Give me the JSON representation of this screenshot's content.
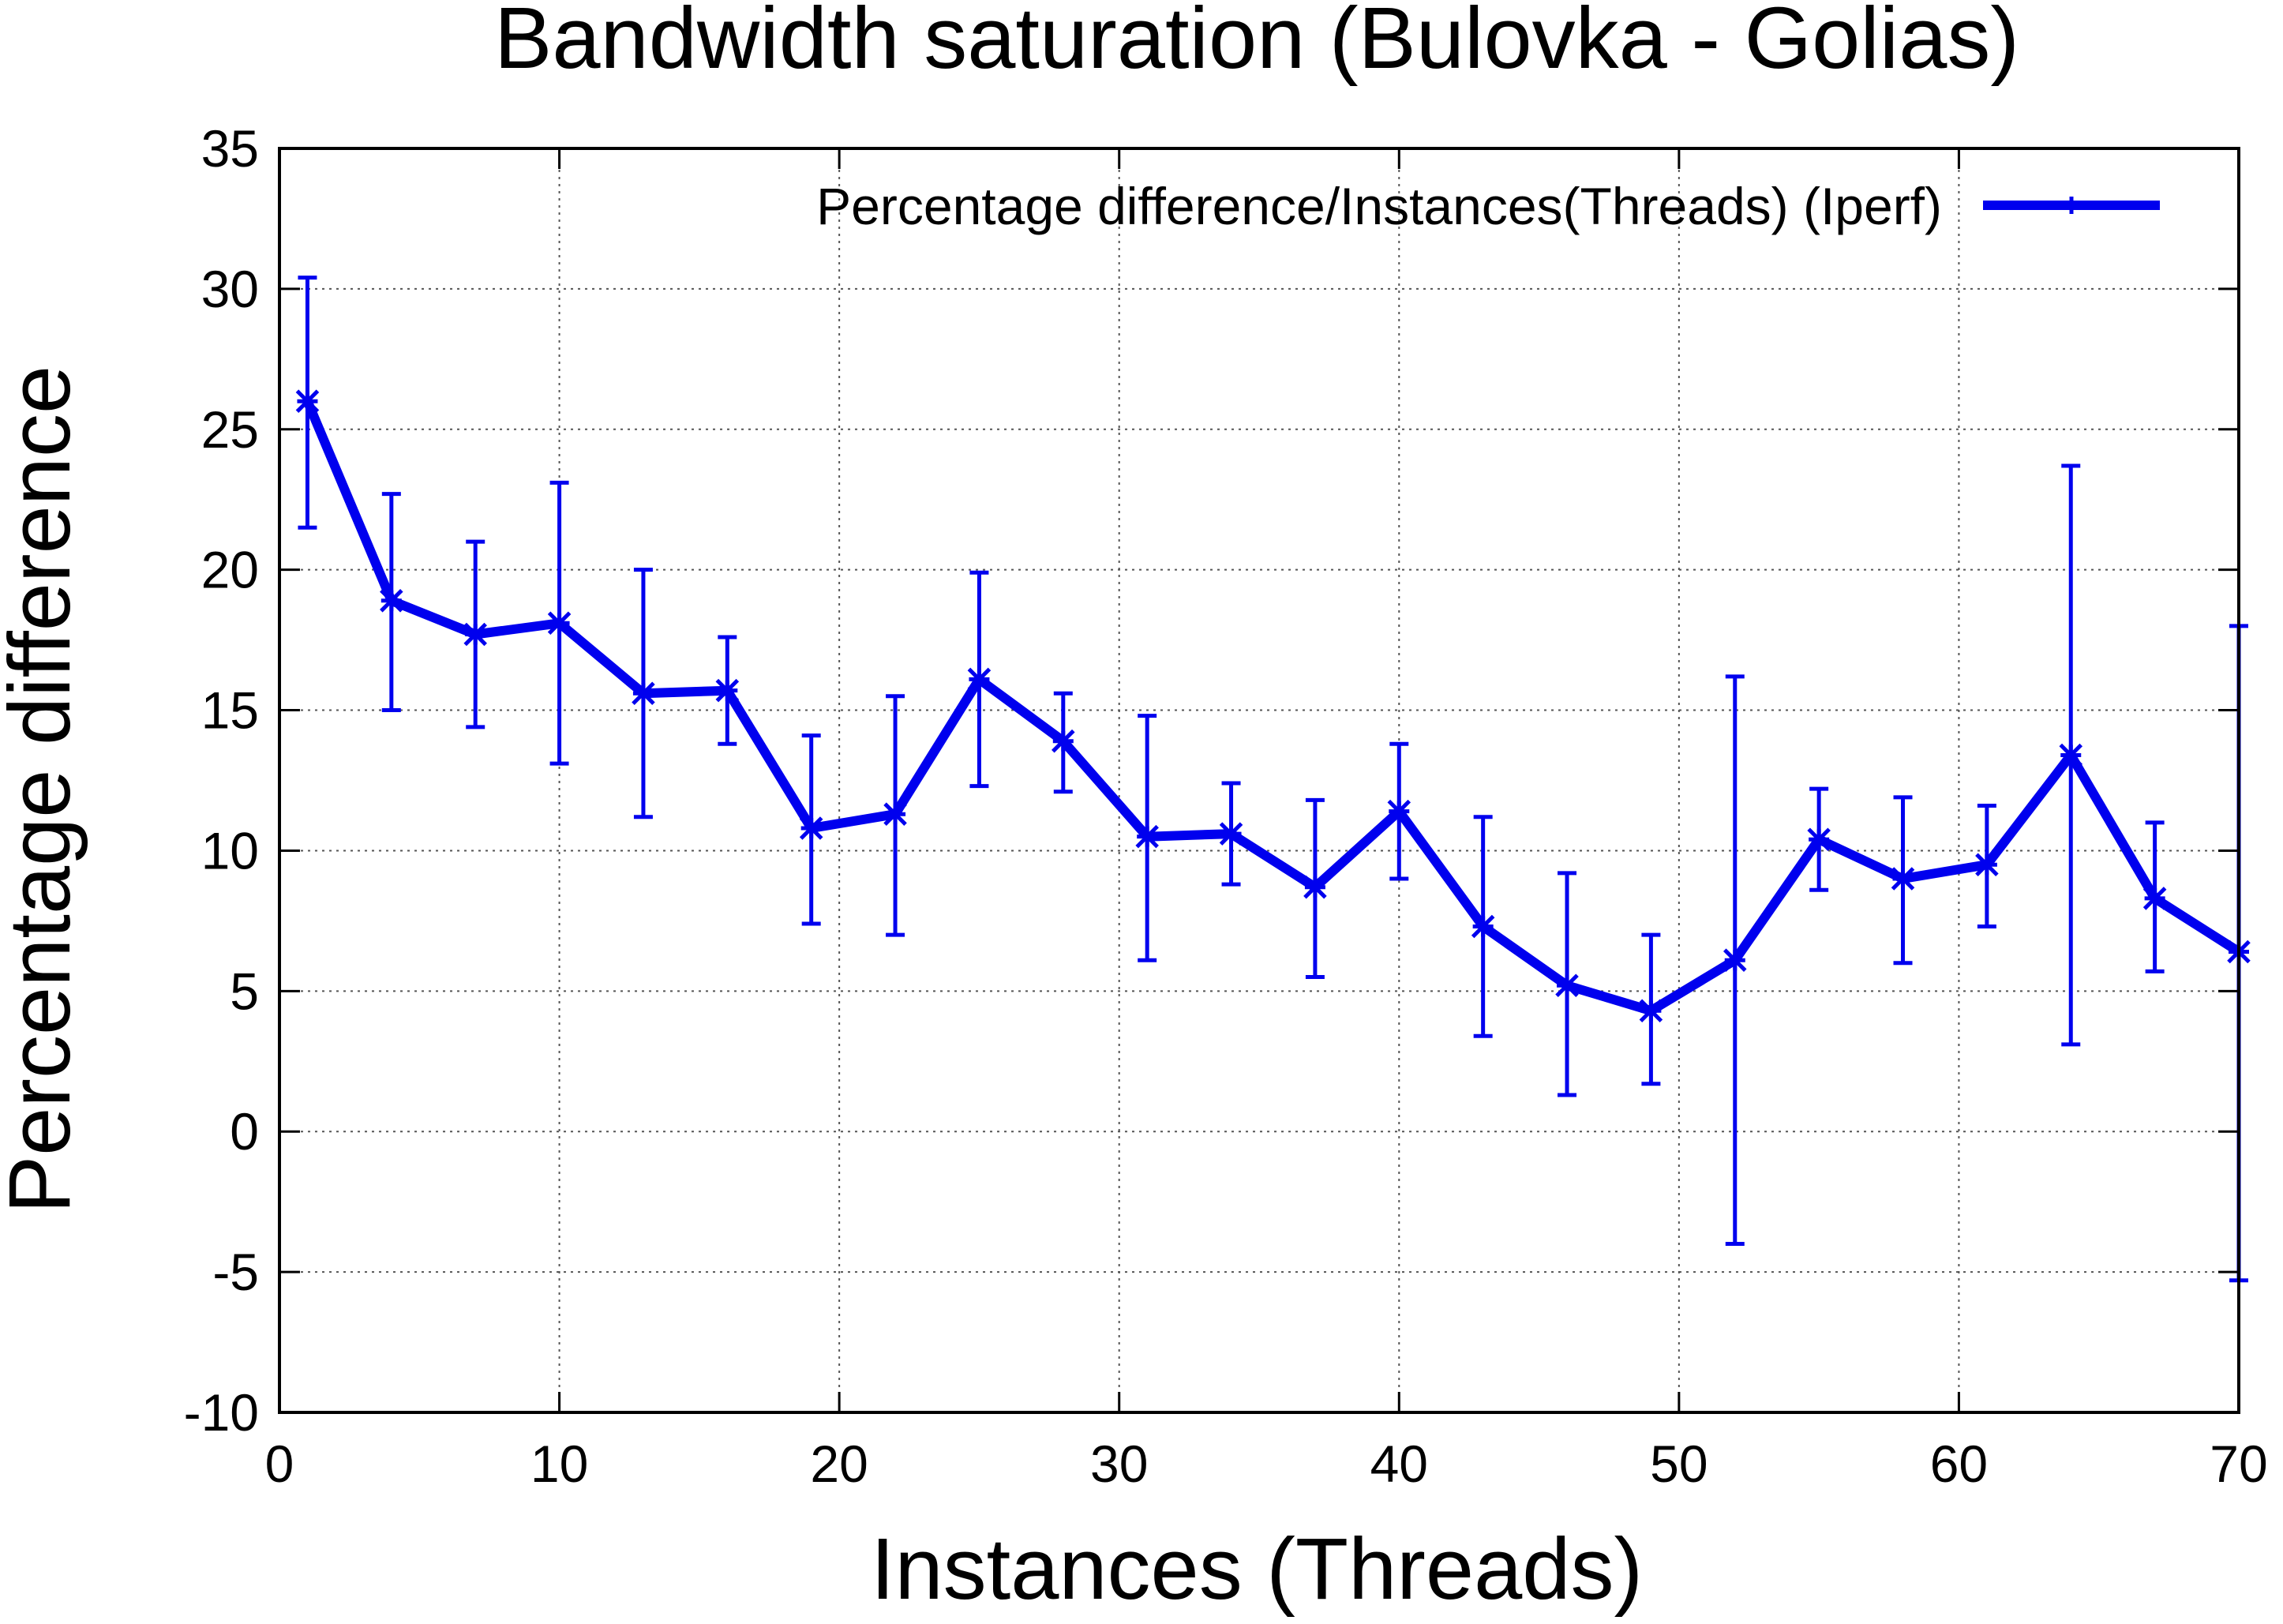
{
  "chart_data": {
    "type": "line",
    "title": "Bandwidth saturation (Bulovka - Golias)",
    "xlabel": "Instances (Threads)",
    "ylabel": "Percentage difference",
    "xlim": [
      0,
      70
    ],
    "ylim": [
      -10,
      35
    ],
    "xticks": [
      0,
      10,
      20,
      30,
      40,
      50,
      60,
      70
    ],
    "yticks": [
      -10,
      -5,
      0,
      5,
      10,
      15,
      20,
      25,
      30,
      35
    ],
    "grid": true,
    "legend_position": "top-right",
    "series": [
      {
        "name": "Percentage difference/Instances(Threads) (Iperf)",
        "color": "#0000ee",
        "marker": "star",
        "error_bars": true,
        "points": [
          {
            "x": 1,
            "y": 26.0,
            "ylow": 21.5,
            "yhigh": 30.4
          },
          {
            "x": 4,
            "y": 18.9,
            "ylow": 15.0,
            "yhigh": 22.7
          },
          {
            "x": 7,
            "y": 17.7,
            "ylow": 14.4,
            "yhigh": 21.0
          },
          {
            "x": 10,
            "y": 18.1,
            "ylow": 13.1,
            "yhigh": 23.1
          },
          {
            "x": 13,
            "y": 15.6,
            "ylow": 11.2,
            "yhigh": 20.0
          },
          {
            "x": 16,
            "y": 15.7,
            "ylow": 13.8,
            "yhigh": 17.6
          },
          {
            "x": 19,
            "y": 10.8,
            "ylow": 7.4,
            "yhigh": 14.1
          },
          {
            "x": 22,
            "y": 11.3,
            "ylow": 7.0,
            "yhigh": 15.5
          },
          {
            "x": 25,
            "y": 16.1,
            "ylow": 12.3,
            "yhigh": 19.9
          },
          {
            "x": 28,
            "y": 13.9,
            "ylow": 12.1,
            "yhigh": 15.6
          },
          {
            "x": 31,
            "y": 10.5,
            "ylow": 6.1,
            "yhigh": 14.8
          },
          {
            "x": 34,
            "y": 10.6,
            "ylow": 8.8,
            "yhigh": 12.4
          },
          {
            "x": 37,
            "y": 8.7,
            "ylow": 5.5,
            "yhigh": 11.8
          },
          {
            "x": 40,
            "y": 11.4,
            "ylow": 9.0,
            "yhigh": 13.8
          },
          {
            "x": 43,
            "y": 7.3,
            "ylow": 3.4,
            "yhigh": 11.2
          },
          {
            "x": 46,
            "y": 5.2,
            "ylow": 1.3,
            "yhigh": 9.2
          },
          {
            "x": 49,
            "y": 4.3,
            "ylow": 1.7,
            "yhigh": 7.0
          },
          {
            "x": 52,
            "y": 6.1,
            "ylow": -4.0,
            "yhigh": 16.2
          },
          {
            "x": 55,
            "y": 10.4,
            "ylow": 8.6,
            "yhigh": 12.2
          },
          {
            "x": 58,
            "y": 9.0,
            "ylow": 6.0,
            "yhigh": 11.9
          },
          {
            "x": 61,
            "y": 9.5,
            "ylow": 7.3,
            "yhigh": 11.6
          },
          {
            "x": 64,
            "y": 13.4,
            "ylow": 3.1,
            "yhigh": 23.7
          },
          {
            "x": 67,
            "y": 8.3,
            "ylow": 5.7,
            "yhigh": 11.0
          },
          {
            "x": 70,
            "y": 6.4,
            "ylow": -5.3,
            "yhigh": 18.0
          }
        ]
      }
    ]
  }
}
